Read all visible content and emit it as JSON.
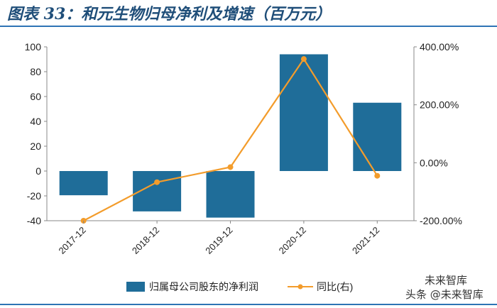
{
  "header": {
    "title": "图表 33：和元生物归母净利及增速（百万元）"
  },
  "legend": {
    "bar_label": "归属母公司股东的净利润",
    "line_label": "同比(右)"
  },
  "watermark": {
    "top": "未来智库",
    "bottom": "头条 @未来智库"
  },
  "chart_data": {
    "type": "bar",
    "categories": [
      "2017-12",
      "2018-12",
      "2019-12",
      "2020-12",
      "2021-12"
    ],
    "series": [
      {
        "name": "归属母公司股东的净利润",
        "type": "bar",
        "axis": "left",
        "values": [
          -19.5,
          -32.5,
          -37.5,
          94,
          55
        ]
      },
      {
        "name": "同比(右)",
        "type": "line",
        "axis": "right",
        "values": [
          -200,
          -67,
          -15,
          358,
          -45
        ]
      }
    ],
    "y_left": {
      "min": -40,
      "max": 100,
      "ticks": [
        "100",
        "80",
        "60",
        "40",
        "20",
        "0",
        "-20",
        "-40"
      ]
    },
    "y_right": {
      "min": -200,
      "max": 400,
      "ticks": [
        "400.00%",
        "200.00%",
        "0.00%",
        "-200.00%"
      ]
    },
    "colors": {
      "bar": "#1f6d99",
      "line": "#f39c2b",
      "axis": "#888888",
      "title": "#1f4e79",
      "rule": "#2e74b5"
    },
    "grid": false,
    "legend_position": "bottom"
  }
}
